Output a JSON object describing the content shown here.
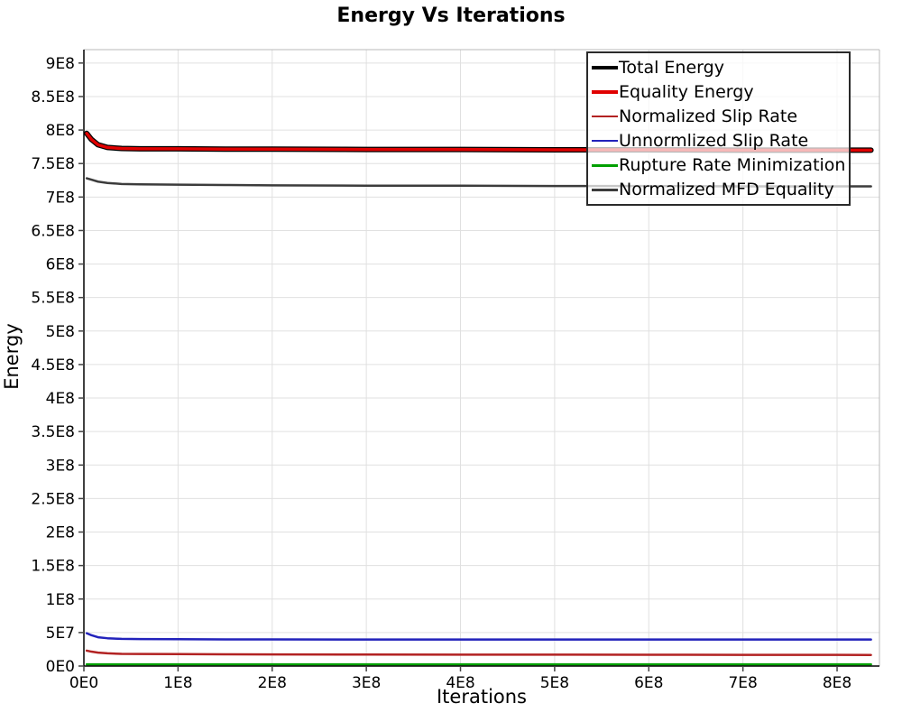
{
  "title": "Energy Vs Iterations",
  "axes": {
    "x_label": "Iterations",
    "y_label": "Energy"
  },
  "chart_data": {
    "type": "line",
    "title": "Energy Vs Iterations",
    "xlabel": "Iterations",
    "ylabel": "Energy",
    "xlim": [
      0,
      845000000.0
    ],
    "ylim": [
      0,
      920000000.0
    ],
    "grid": true,
    "legend_position": "top-right",
    "x_tick_labels": [
      "0E0",
      "1E8",
      "2E8",
      "3E8",
      "4E8",
      "5E8",
      "6E8",
      "7E8",
      "8E8"
    ],
    "x_tick_values": [
      0,
      100000000.0,
      200000000.0,
      300000000.0,
      400000000.0,
      500000000.0,
      600000000.0,
      700000000.0,
      800000000.0
    ],
    "y_tick_labels": [
      "0E0",
      "5E7",
      "1E8",
      "1.5E8",
      "2E8",
      "2.5E8",
      "3E8",
      "3.5E8",
      "4E8",
      "4.5E8",
      "5E8",
      "5.5E8",
      "6E8",
      "6.5E8",
      "7E8",
      "7.5E8",
      "8E8",
      "8.5E8",
      "9E8"
    ],
    "y_tick_values": [
      0,
      50000000.0,
      100000000.0,
      150000000.0,
      200000000.0,
      250000000.0,
      300000000.0,
      350000000.0,
      400000000.0,
      450000000.0,
      500000000.0,
      550000000.0,
      600000000.0,
      650000000.0,
      700000000.0,
      750000000.0,
      800000000.0,
      850000000.0,
      900000000.0
    ],
    "x": [
      3000000.0,
      8000000.0,
      15000000.0,
      25000000.0,
      40000000.0,
      60000000.0,
      100000000.0,
      150000000.0,
      200000000.0,
      300000000.0,
      400000000.0,
      500000000.0,
      600000000.0,
      700000000.0,
      800000000.0,
      836000000.0
    ],
    "series": [
      {
        "name": "Total Energy",
        "color": "#000000",
        "line_width": 6,
        "legend_weight": 4,
        "values": [
          795000000.0,
          786000000.0,
          778000000.0,
          774000000.0,
          772500000.0,
          772000000.0,
          772000000.0,
          771500000.0,
          771500000.0,
          771000000.0,
          771000000.0,
          770500000.0,
          770500000.0,
          770000000.0,
          770000000.0,
          770000000.0
        ]
      },
      {
        "name": "Equality Energy",
        "color": "#E00000",
        "line_width": 3.5,
        "legend_weight": 4,
        "values": [
          795000000.0,
          786000000.0,
          778000000.0,
          774000000.0,
          772500000.0,
          772000000.0,
          772000000.0,
          771500000.0,
          771500000.0,
          771000000.0,
          771000000.0,
          770500000.0,
          770500000.0,
          770000000.0,
          770000000.0,
          770000000.0
        ]
      },
      {
        "name": "Normalized Slip Rate",
        "color": "#B22222",
        "line_width": 2.5,
        "legend_weight": 2.5,
        "values": [
          23000000.0,
          21500000.0,
          20000000.0,
          19000000.0,
          18200000.0,
          18000000.0,
          17800000.0,
          17500000.0,
          17300000.0,
          17200000.0,
          17000000.0,
          17000000.0,
          16800000.0,
          16700000.0,
          16600000.0,
          16500000.0
        ]
      },
      {
        "name": "Unnormlized Slip Rate",
        "color": "#2222BB",
        "line_width": 2.5,
        "legend_weight": 2.5,
        "values": [
          49000000.0,
          46000000.0,
          43000000.0,
          41500000.0,
          40500000.0,
          40200000.0,
          40000000.0,
          39800000.0,
          39700000.0,
          39600000.0,
          39500000.0,
          39500000.0,
          39500000.0,
          39500000.0,
          39500000.0,
          39500000.0
        ]
      },
      {
        "name": "Rupture Rate Minimization",
        "color": "#00A000",
        "line_width": 2.5,
        "legend_weight": 2.5,
        "values": [
          2500000.0,
          2500000.0,
          2500000.0,
          2500000.0,
          2500000.0,
          2500000.0,
          2500000.0,
          2500000.0,
          2500000.0,
          2500000.0,
          2500000.0,
          2500000.0,
          2500000.0,
          2500000.0,
          2500000.0,
          2500000.0
        ]
      },
      {
        "name": "Normalized MFD Equality",
        "color": "#3C3C3C",
        "line_width": 2.5,
        "legend_weight": 2.5,
        "values": [
          728000000.0,
          726000000.0,
          723000000.0,
          721000000.0,
          719500000.0,
          719000000.0,
          718500000.0,
          718000000.0,
          717500000.0,
          717000000.0,
          717000000.0,
          716500000.0,
          716500000.0,
          716000000.0,
          716000000.0,
          716000000.0
        ]
      }
    ],
    "colors": {
      "grid": "#E0E0E0",
      "axis": "#000000",
      "plot_border": "#B8B8B8",
      "background": "#FFFFFF"
    }
  }
}
